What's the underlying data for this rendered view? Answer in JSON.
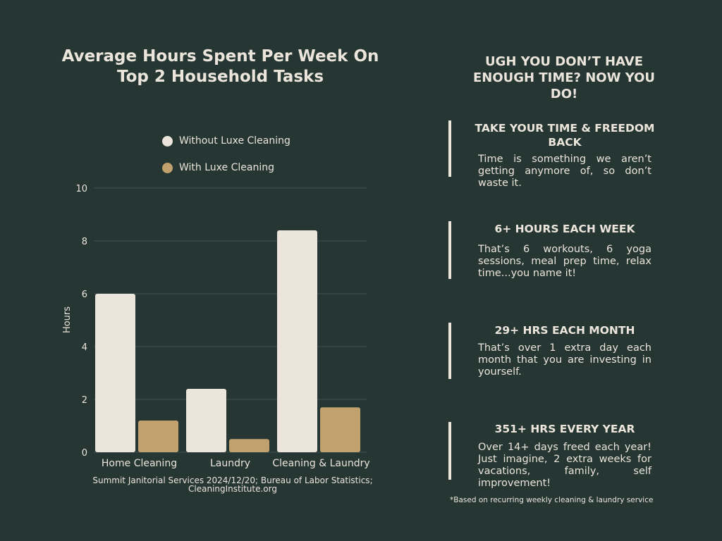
{
  "chart_data": {
    "type": "bar",
    "title": "Average Hours Spent Per Week On Top 2 Household Tasks",
    "categories": [
      "Home Cleaning",
      "Laundry",
      "Cleaning & Laundry"
    ],
    "series": [
      {
        "name": "Without Luxe Cleaning",
        "color": "#ebe5dc",
        "values": [
          6.0,
          2.4,
          8.4
        ]
      },
      {
        "name": "With Luxe Cleaning",
        "color": "#c1a26e",
        "values": [
          1.2,
          0.5,
          1.7
        ]
      }
    ],
    "xlabel": "",
    "ylabel": "Hours",
    "ylim": [
      0,
      10
    ],
    "yticks": [
      0,
      2,
      4,
      6,
      8,
      10
    ],
    "grid": true,
    "legend_position": "top",
    "source": "Summit Janitorial Services 2024/12/20; Bureau of Labor Statistics; CleaningInstitute.org"
  },
  "promo": {
    "headline": "UGH YOU DON’T HAVE ENOUGH TIME? NOW YOU DO!",
    "blocks": [
      {
        "title": "TAKE YOUR TIME & FREEDOM BACK",
        "text": "Time is something we aren’t getting anymore of, so don’t waste it."
      },
      {
        "title": "6+ HOURS EACH WEEK",
        "text": "That’s 6 workouts, 6 yoga sessions, meal prep time, relax time...you name it!"
      },
      {
        "title": "29+ HRS EACH MONTH",
        "text": "That’s over 1 extra day each month that you are investing in yourself."
      },
      {
        "title": "351+ HRS EVERY YEAR",
        "text": "Over 14+ days freed each year! Just imagine, 2 extra weeks for vacations, family, self improvement!"
      }
    ],
    "footnote": "*Based on recurring weekly cleaning & laundry service"
  },
  "colors": {
    "background": "#263633",
    "text": "#ebe5dc",
    "gold": "#c1a26e",
    "grid": "#3f514d"
  }
}
